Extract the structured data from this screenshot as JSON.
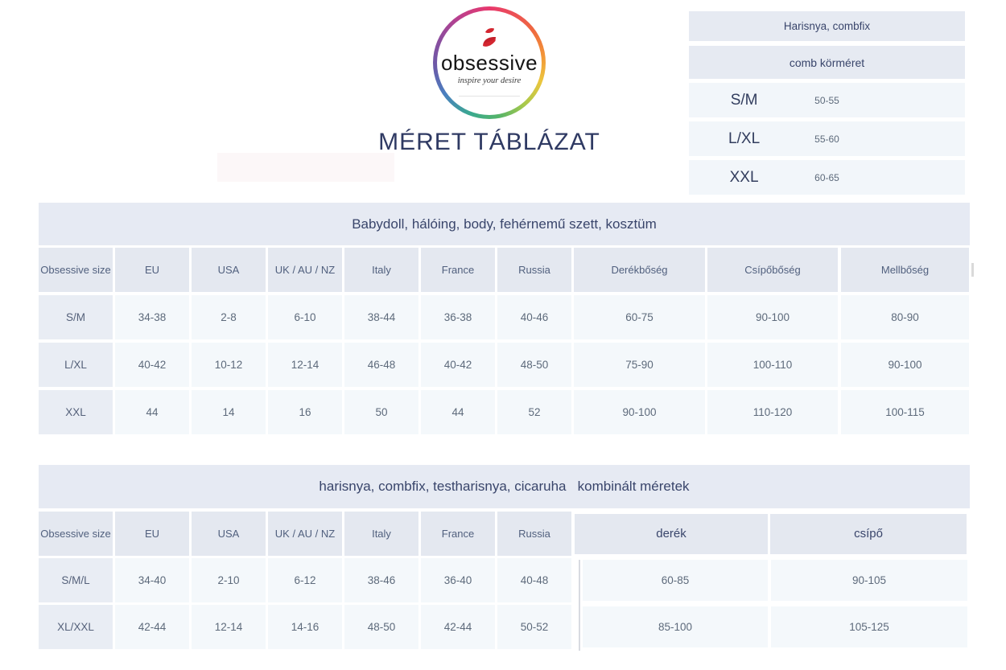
{
  "logo": {
    "brand": "obsessive",
    "tagline": "inspire your desire",
    "icon": "flame-ribbon-icon"
  },
  "page_title": "MÉRET TÁBLÁZAT",
  "thigh_table": {
    "title": "Harisnya, combfix",
    "subtitle": "comb körméret",
    "rows": [
      [
        "S/M",
        "50-55"
      ],
      [
        "L/XL",
        "55-60"
      ],
      [
        "XXL",
        "60-65"
      ]
    ]
  },
  "main_table": {
    "title": "Babydoll, hálóing, body, fehérnemű szett, kosztüm",
    "headers": [
      "Obsessive size",
      "EU",
      "USA",
      "UK / AU / NZ",
      "Italy",
      "France",
      "Russia",
      "Derékbőség",
      "Csípőbőség",
      "Mellbőség"
    ],
    "rows": [
      [
        "S/M",
        "34-38",
        "2-8",
        "6-10",
        "38-44",
        "36-38",
        "40-46",
        "60-75",
        "90-100",
        "80-90"
      ],
      [
        "L/XL",
        "40-42",
        "10-12",
        "12-14",
        "46-48",
        "40-42",
        "48-50",
        "75-90",
        "100-110",
        "90-100"
      ],
      [
        "XXL",
        "44",
        "14",
        "16",
        "50",
        "44",
        "52",
        "90-100",
        "110-120",
        "100-115"
      ]
    ]
  },
  "combined_table": {
    "title": "harisnya, combfix, testharisnya, cicaruha   kombinált méretek",
    "headers": [
      "Obsessive size",
      "EU",
      "USA",
      "UK / AU / NZ",
      "Italy",
      "France",
      "Russia",
      "derék",
      "csípő"
    ],
    "rows": [
      [
        "S/M/L",
        "34-40",
        "2-10",
        "6-12",
        "38-46",
        "36-40",
        "40-48",
        "60-85",
        "90-105"
      ],
      [
        "XL/XXL",
        "42-44",
        "12-14",
        "14-16",
        "48-50",
        "42-44",
        "50-52",
        "85-100",
        "105-125"
      ]
    ]
  },
  "colors": {
    "title_text": "#2f3a63",
    "band_bg": "#e6eaf3",
    "header_cell_bg": "#e4e8f0",
    "label_cell_bg": "#e9edf4",
    "value_cell_bg": "#f4f8fb",
    "value_text": "#5d6a7b",
    "flame_red": "#d32630",
    "decor_band_pink": "#fcf7f8"
  }
}
